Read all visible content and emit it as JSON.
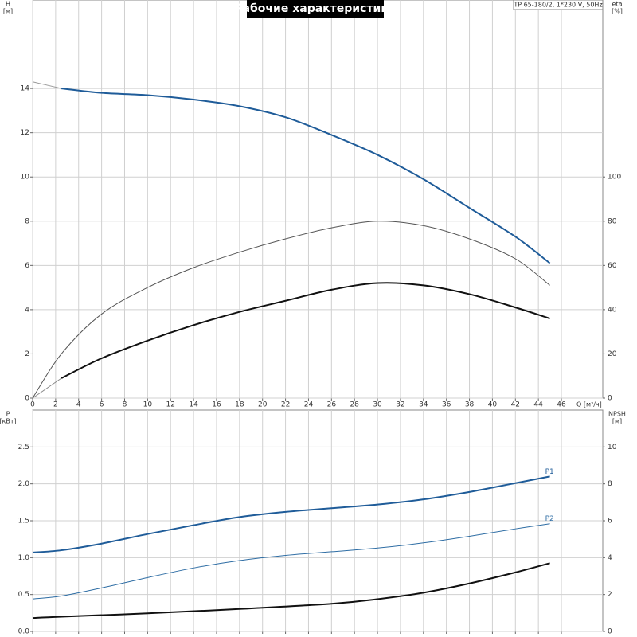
{
  "chart_data": [
    {
      "type": "line",
      "title": "Рабочие характеристики",
      "subtitle": "TP 65-180/2, 1*230 V, 50Hz",
      "ylabel": "H",
      "yunit": "[м]",
      "y2label": "eta",
      "y2unit": "[%]",
      "xlabel": "Q [м³/ч]",
      "xlim": [
        0,
        49.6
      ],
      "xticks": [
        0,
        2,
        4,
        6,
        8,
        10,
        12,
        14,
        16,
        18,
        20,
        22,
        24,
        26,
        28,
        30,
        32,
        34,
        36,
        38,
        40,
        42,
        44,
        46
      ],
      "ylim": [
        0,
        18
      ],
      "yticks": [
        0,
        2,
        4,
        6,
        8,
        10,
        12,
        14
      ],
      "y2lim": [
        0,
        180
      ],
      "y2ticks": [
        0,
        20,
        40,
        60,
        80,
        100
      ],
      "grid": true,
      "series": [
        {
          "color": "#1f5c99",
          "width": 2,
          "x": [
            2.5,
            6,
            10,
            14,
            18,
            22,
            26,
            30,
            34,
            38,
            42,
            45
          ],
          "values": [
            14.0,
            13.8,
            13.7,
            13.5,
            13.2,
            12.7,
            11.9,
            11.0,
            9.9,
            8.6,
            7.3,
            6.1
          ]
        },
        {
          "color": "#999999",
          "width": 1,
          "x": [
            0,
            2.5
          ],
          "values": [
            14.3,
            14.0
          ]
        },
        {
          "color": "#555555",
          "width": 1,
          "axis": "y2",
          "x": [
            0,
            2.5,
            6,
            10,
            14,
            18,
            22,
            26,
            30,
            34,
            38,
            42,
            45
          ],
          "values": [
            0,
            20,
            38,
            50,
            59,
            66,
            72,
            77,
            80,
            78,
            72,
            63,
            51
          ]
        },
        {
          "color": "#111111",
          "width": 2,
          "axis": "y2",
          "x": [
            2.5,
            6,
            10,
            14,
            18,
            22,
            26,
            30,
            34,
            38,
            42,
            45
          ],
          "values": [
            9,
            18,
            26,
            33,
            39,
            44,
            49,
            52,
            51,
            47,
            41,
            36
          ]
        },
        {
          "color": "#888888",
          "width": 1,
          "axis": "y2",
          "x": [
            0,
            2.5
          ],
          "values": [
            0,
            9
          ]
        }
      ]
    },
    {
      "type": "line",
      "ylabel": "P",
      "yunit": "[кВт]",
      "y2label": "NPSH",
      "y2unit": "[м]",
      "xlim": [
        0,
        49.6
      ],
      "xticks": [
        0,
        2,
        4,
        6,
        8,
        10,
        12,
        14,
        16,
        18,
        20,
        22,
        24,
        26,
        28,
        30,
        32,
        34,
        36,
        38,
        40,
        42,
        44,
        46
      ],
      "ylim": [
        0,
        3
      ],
      "yticks": [
        {
          "value": 0,
          "label": "0.0"
        },
        0.5,
        {
          "value": 1,
          "label": "1.0"
        },
        1.5,
        {
          "value": 2,
          "label": "2.0"
        },
        2.5
      ],
      "y2lim": [
        0,
        12
      ],
      "y2ticks": [
        0,
        2,
        4,
        6,
        8,
        10
      ],
      "grid": true,
      "series": [
        {
          "name": "P1",
          "color": "#1f5c99",
          "width": 2,
          "x": [
            0,
            2.5,
            6,
            10,
            14,
            18,
            22,
            26,
            30,
            34,
            38,
            42,
            45
          ],
          "values": [
            1.07,
            1.1,
            1.19,
            1.32,
            1.44,
            1.55,
            1.62,
            1.67,
            1.72,
            1.79,
            1.89,
            2.01,
            2.1
          ]
        },
        {
          "name": "P2",
          "color": "#2e6da4",
          "width": 1,
          "x": [
            0,
            2.5,
            6,
            10,
            14,
            18,
            22,
            26,
            30,
            34,
            38,
            42,
            45
          ],
          "values": [
            0.44,
            0.48,
            0.59,
            0.73,
            0.86,
            0.96,
            1.03,
            1.08,
            1.13,
            1.2,
            1.29,
            1.39,
            1.46
          ]
        },
        {
          "color": "#111111",
          "width": 2,
          "axis": "y2",
          "x": [
            0,
            2.5,
            10,
            18,
            26,
            30,
            34,
            38,
            42,
            45
          ],
          "values": [
            0.73,
            0.8,
            0.98,
            1.22,
            1.5,
            1.75,
            2.1,
            2.6,
            3.2,
            3.7
          ]
        }
      ]
    }
  ]
}
